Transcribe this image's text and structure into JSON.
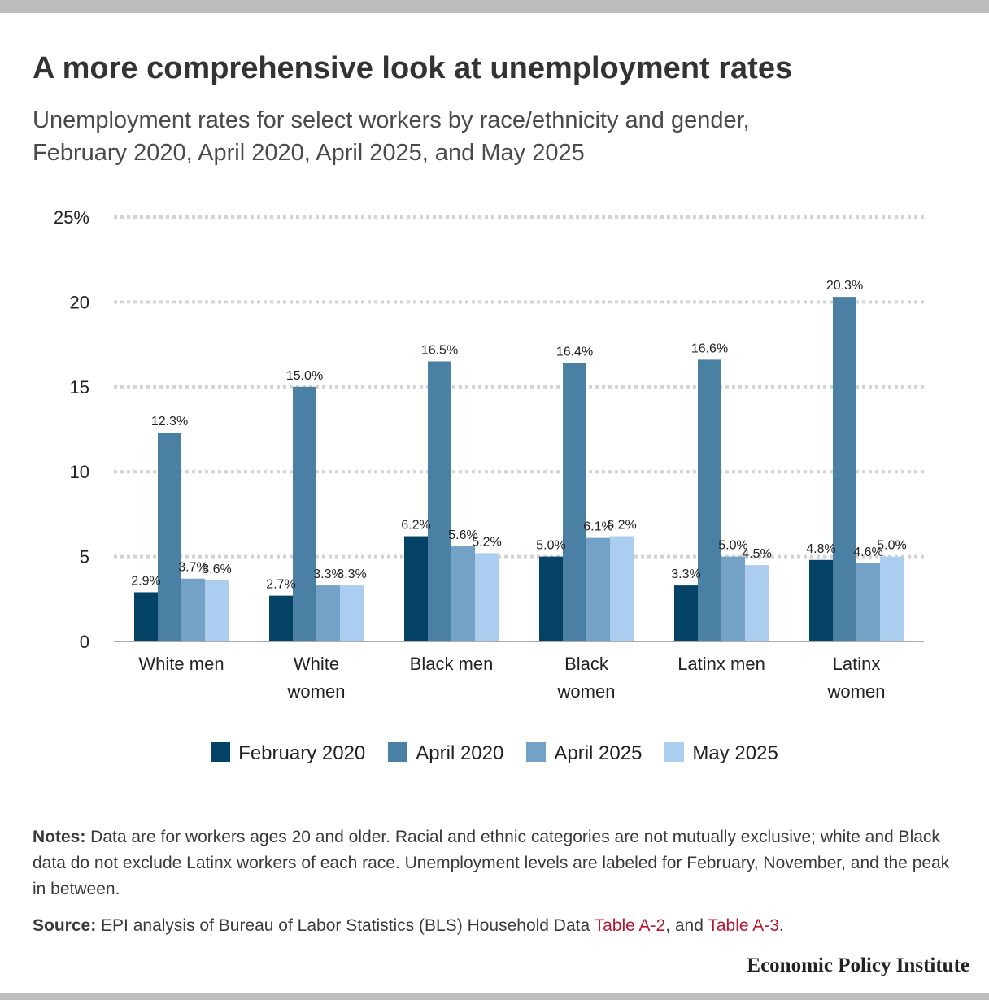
{
  "title": "A more comprehensive look at unemployment rates",
  "subtitle_line1": "Unemployment rates for select workers by race/ethnicity and gender,",
  "subtitle_line2": "February 2020, April 2020, April 2025, and May 2025",
  "colors": {
    "February 2020": "#044266",
    "April 2020": "#4a80a3",
    "April 2025": "#74a2c6",
    "May 2025": "#abcdef",
    "grid": "#d3d3d3",
    "baseline": "#aaaaaa",
    "link": "#b5172e"
  },
  "chart_data": {
    "type": "bar",
    "categories": [
      [
        "White men"
      ],
      [
        "White",
        "women"
      ],
      [
        "Black men"
      ],
      [
        "Black",
        "women"
      ],
      [
        "Latinx men"
      ],
      [
        "Latinx",
        "women"
      ]
    ],
    "series": [
      {
        "name": "February 2020",
        "values": [
          2.9,
          2.7,
          6.2,
          5.0,
          3.3,
          4.8
        ]
      },
      {
        "name": "April 2020",
        "values": [
          12.3,
          15.0,
          16.5,
          16.4,
          16.6,
          20.3
        ]
      },
      {
        "name": "April 2025",
        "values": [
          3.7,
          3.3,
          5.6,
          6.1,
          5.0,
          4.6
        ]
      },
      {
        "name": "May 2025",
        "values": [
          3.6,
          3.3,
          5.2,
          6.2,
          4.5,
          5.0
        ]
      }
    ],
    "ylim": [
      0,
      25
    ],
    "yticks": [
      0,
      5,
      10,
      15,
      20,
      25
    ],
    "ytick_labels": [
      "0",
      "5",
      "10",
      "15",
      "20",
      "25%"
    ],
    "grid": true,
    "legend_position": "bottom"
  },
  "notes": {
    "label": "Notes:",
    "text": " Data are for workers ages 20 and older. Racial and ethnic categories are not mutually exclusive; white and Black data do not exclude Latinx workers of each race. Unemployment levels are labeled for February, November, and the peak in between."
  },
  "source": {
    "label": "Source:",
    "text_before": " EPI analysis of Bureau of Labor Statistics (BLS) Household Data ",
    "link1": "Table A-2",
    "text_between": ", and ",
    "link2": "Table A-3",
    "text_after": "."
  },
  "branding": "Economic Policy Institute"
}
